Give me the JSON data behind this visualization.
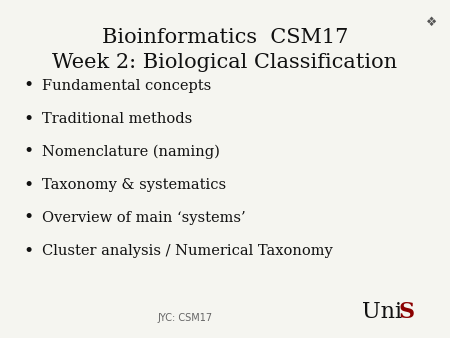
{
  "title_line1": "Bioinformatics  CSM17",
  "title_line2": "Week 2: Biological Classification",
  "bullet_items": [
    "Fundamental concepts",
    "Traditional methods",
    "Nomenclature (naming)",
    "Taxonomy & systematics",
    "Overview of main ‘systems’",
    "Cluster analysis / Numerical Taxonomy"
  ],
  "footer_text": "JYC: CSM17",
  "unis_text_uni": "Uni",
  "unis_text_s": "S",
  "background_color": "#f5f5f0",
  "title_color": "#111111",
  "bullet_color": "#111111",
  "footer_color": "#666666",
  "unis_color": "#111111",
  "unis_s_color": "#8b0000",
  "title_fontsize": 15,
  "bullet_fontsize": 10.5,
  "footer_fontsize": 7,
  "unis_fontsize": 16
}
